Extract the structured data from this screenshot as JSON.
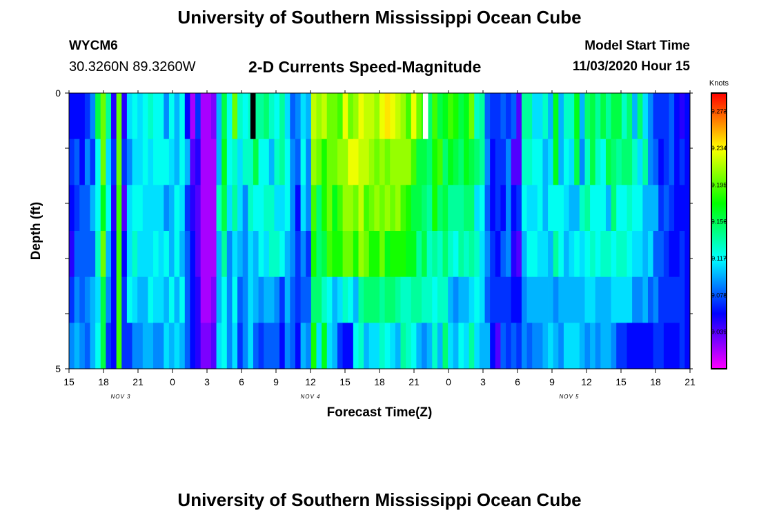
{
  "header": {
    "title": "University of Southern Mississippi Ocean Cube",
    "station_id": "WYCM6",
    "coordinates": "30.3260N 89.3260W",
    "subtitle": "2-D Currents Speed-Magnitude",
    "model_start_label": "Model Start Time",
    "model_start_value": "11/03/2020 Hour 15"
  },
  "footer": {
    "title": "University of Southern Mississippi Ocean Cube"
  },
  "chart_data": {
    "type": "heatmap",
    "xlabel": "Forecast Time(Z)",
    "ylabel": "Depth (ft)",
    "x_tick_labels": [
      "15",
      "18",
      "21",
      "0",
      "3",
      "6",
      "9",
      "12",
      "15",
      "18",
      "21",
      "0",
      "3",
      "6",
      "9",
      "12",
      "15",
      "18",
      "21"
    ],
    "x_range_hours": [
      0,
      54
    ],
    "date_labels": [
      {
        "text": "NOV 3",
        "hour": 4.5
      },
      {
        "text": "NOV 4",
        "hour": 21
      },
      {
        "text": "NOV 5",
        "hour": 43.5
      }
    ],
    "y_tick_labels": [
      "0",
      "5"
    ],
    "y_range": [
      0,
      5
    ],
    "colorbar": {
      "label": "Knots",
      "min": 0,
      "max": 0.2925,
      "tick_labels": [
        "0.273",
        "0.234",
        "0.195",
        "0.156",
        "0.117",
        "0.078",
        "0.039"
      ],
      "tick_values": [
        0.273,
        0.234,
        0.195,
        0.156,
        0.117,
        0.078,
        0.039
      ]
    },
    "missing_cells": [
      {
        "hour": 16,
        "depth_row": 0,
        "color": "#000000"
      },
      {
        "hour": 31,
        "depth_row": 0,
        "color": "#ffffff"
      }
    ],
    "depth_levels": 6,
    "depth_rows": [
      [
        0.06,
        0.06,
        0.06,
        0.07,
        0.09,
        0.16,
        0.2,
        0.14,
        0.05,
        0.2,
        0.05,
        0.11,
        0.12,
        0.11,
        0.12,
        0.13,
        0.12,
        0.12,
        0.09,
        0.12,
        0.1,
        0.12,
        0.06,
        0.02,
        0.07,
        0.02,
        0.02,
        0.03,
        0.1,
        0.16,
        0.12,
        0.2,
        0.13,
        0.12,
        0.13,
        0.14,
        0.14,
        0.15,
        0.13,
        0.12,
        0.14,
        0.11,
        0.08,
        0.09,
        0.11,
        0.1,
        0.22,
        0.21,
        0.22,
        0.2,
        0.2,
        0.19,
        0.23,
        0.2,
        0.21,
        0.23,
        0.22,
        0.22,
        0.21,
        0.23,
        0.24,
        0.23,
        0.22,
        0.21,
        0.19,
        0.23,
        0.2,
        0.18,
        0.15,
        0.19,
        0.16,
        0.17,
        0.19,
        0.18,
        0.16,
        0.17,
        0.2,
        0.13,
        0.14,
        0.08,
        0.07,
        0.07,
        0.08,
        0.07,
        0.08,
        0.04,
        0.14,
        0.14,
        0.11,
        0.11,
        0.13,
        0.1,
        0.17,
        0.1,
        0.13,
        0.13,
        0.17,
        0.1,
        0.15,
        0.16,
        0.14,
        0.16,
        0.14,
        0.16,
        0.16,
        0.13,
        0.15,
        0.1,
        0.15,
        0.11,
        0.09,
        0.07,
        0.07,
        0.07,
        0.08,
        0.06,
        0.05,
        0.06
      ],
      [
        0.07,
        0.08,
        0.06,
        0.09,
        0.07,
        0.12,
        0.2,
        0.11,
        0.07,
        0.2,
        0.07,
        0.09,
        0.11,
        0.11,
        0.12,
        0.11,
        0.12,
        0.12,
        0.12,
        0.11,
        0.1,
        0.12,
        0.1,
        0.04,
        0.05,
        0.02,
        0.02,
        0.02,
        0.1,
        0.17,
        0.12,
        0.13,
        0.11,
        0.13,
        0.13,
        0.16,
        0.12,
        0.12,
        0.1,
        0.13,
        0.14,
        0.12,
        0.09,
        0.08,
        0.12,
        0.09,
        0.21,
        0.2,
        0.18,
        0.2,
        0.2,
        0.21,
        0.21,
        0.23,
        0.23,
        0.22,
        0.22,
        0.21,
        0.2,
        0.21,
        0.2,
        0.21,
        0.21,
        0.21,
        0.21,
        0.19,
        0.16,
        0.16,
        0.15,
        0.18,
        0.19,
        0.15,
        0.17,
        0.16,
        0.15,
        0.17,
        0.16,
        0.15,
        0.14,
        0.09,
        0.06,
        0.07,
        0.07,
        0.09,
        0.04,
        0.04,
        0.13,
        0.13,
        0.12,
        0.12,
        0.1,
        0.11,
        0.17,
        0.1,
        0.12,
        0.11,
        0.16,
        0.09,
        0.13,
        0.16,
        0.13,
        0.12,
        0.16,
        0.15,
        0.14,
        0.15,
        0.15,
        0.13,
        0.11,
        0.14,
        0.09,
        0.08,
        0.06,
        0.07,
        0.08,
        0.06,
        0.07,
        0.06
      ],
      [
        0.06,
        0.07,
        0.08,
        0.08,
        0.1,
        0.12,
        0.17,
        0.12,
        0.05,
        0.19,
        0.04,
        0.11,
        0.12,
        0.12,
        0.11,
        0.11,
        0.11,
        0.11,
        0.09,
        0.1,
        0.12,
        0.11,
        0.07,
        0.05,
        0.04,
        0.02,
        0.02,
        0.02,
        0.13,
        0.16,
        0.11,
        0.14,
        0.11,
        0.09,
        0.13,
        0.12,
        0.12,
        0.13,
        0.13,
        0.11,
        0.11,
        0.12,
        0.09,
        0.06,
        0.11,
        0.09,
        0.19,
        0.15,
        0.18,
        0.2,
        0.17,
        0.19,
        0.21,
        0.21,
        0.2,
        0.22,
        0.19,
        0.2,
        0.21,
        0.2,
        0.21,
        0.2,
        0.21,
        0.19,
        0.18,
        0.16,
        0.16,
        0.15,
        0.14,
        0.18,
        0.15,
        0.16,
        0.14,
        0.14,
        0.14,
        0.15,
        0.15,
        0.11,
        0.12,
        0.08,
        0.06,
        0.07,
        0.06,
        0.09,
        0.06,
        0.07,
        0.12,
        0.11,
        0.11,
        0.12,
        0.1,
        0.12,
        0.12,
        0.12,
        0.11,
        0.1,
        0.1,
        0.13,
        0.14,
        0.12,
        0.12,
        0.12,
        0.1,
        0.15,
        0.12,
        0.12,
        0.13,
        0.12,
        0.12,
        0.1,
        0.1,
        0.1,
        0.07,
        0.08,
        0.07,
        0.06,
        0.06,
        0.06
      ],
      [
        0.05,
        0.08,
        0.08,
        0.08,
        0.08,
        0.13,
        0.2,
        0.1,
        0.06,
        0.19,
        0.06,
        0.11,
        0.13,
        0.11,
        0.11,
        0.11,
        0.12,
        0.11,
        0.12,
        0.1,
        0.12,
        0.1,
        0.08,
        0.06,
        0.04,
        0.02,
        0.02,
        0.02,
        0.1,
        0.14,
        0.09,
        0.11,
        0.1,
        0.09,
        0.11,
        0.1,
        0.12,
        0.11,
        0.13,
        0.13,
        0.12,
        0.1,
        0.09,
        0.07,
        0.09,
        0.07,
        0.18,
        0.15,
        0.16,
        0.19,
        0.18,
        0.18,
        0.2,
        0.2,
        0.18,
        0.21,
        0.2,
        0.18,
        0.18,
        0.2,
        0.17,
        0.18,
        0.18,
        0.18,
        0.17,
        0.17,
        0.14,
        0.16,
        0.13,
        0.14,
        0.13,
        0.15,
        0.13,
        0.12,
        0.14,
        0.13,
        0.14,
        0.13,
        0.11,
        0.09,
        0.07,
        0.06,
        0.08,
        0.09,
        0.05,
        0.04,
        0.1,
        0.12,
        0.12,
        0.11,
        0.11,
        0.1,
        0.14,
        0.12,
        0.1,
        0.11,
        0.12,
        0.11,
        0.12,
        0.13,
        0.12,
        0.13,
        0.13,
        0.12,
        0.13,
        0.13,
        0.12,
        0.11,
        0.11,
        0.1,
        0.11,
        0.08,
        0.08,
        0.07,
        0.06,
        0.06,
        0.07,
        0.06
      ],
      [
        0.07,
        0.09,
        0.08,
        0.09,
        0.1,
        0.11,
        0.16,
        0.09,
        0.06,
        0.19,
        0.07,
        0.12,
        0.11,
        0.1,
        0.1,
        0.12,
        0.11,
        0.11,
        0.1,
        0.12,
        0.1,
        0.12,
        0.08,
        0.06,
        0.05,
        0.02,
        0.02,
        0.03,
        0.1,
        0.12,
        0.09,
        0.12,
        0.08,
        0.09,
        0.11,
        0.1,
        0.09,
        0.1,
        0.1,
        0.09,
        0.07,
        0.1,
        0.08,
        0.07,
        0.08,
        0.08,
        0.15,
        0.15,
        0.13,
        0.12,
        0.1,
        0.11,
        0.13,
        0.12,
        0.1,
        0.14,
        0.15,
        0.15,
        0.15,
        0.14,
        0.15,
        0.15,
        0.14,
        0.13,
        0.13,
        0.14,
        0.14,
        0.13,
        0.13,
        0.12,
        0.13,
        0.13,
        0.1,
        0.09,
        0.1,
        0.1,
        0.11,
        0.12,
        0.11,
        0.08,
        0.07,
        0.07,
        0.07,
        0.07,
        0.06,
        0.06,
        0.09,
        0.1,
        0.1,
        0.1,
        0.1,
        0.1,
        0.09,
        0.1,
        0.1,
        0.1,
        0.1,
        0.1,
        0.11,
        0.11,
        0.1,
        0.1,
        0.1,
        0.11,
        0.11,
        0.11,
        0.11,
        0.09,
        0.09,
        0.1,
        0.08,
        0.09,
        0.07,
        0.07,
        0.07,
        0.07,
        0.07,
        0.06
      ],
      [
        0.09,
        0.1,
        0.09,
        0.08,
        0.1,
        0.12,
        0.16,
        0.07,
        0.06,
        0.19,
        0.07,
        0.07,
        0.09,
        0.09,
        0.1,
        0.1,
        0.09,
        0.09,
        0.11,
        0.1,
        0.11,
        0.1,
        0.08,
        0.06,
        0.05,
        0.03,
        0.03,
        0.04,
        0.11,
        0.12,
        0.09,
        0.11,
        0.07,
        0.09,
        0.11,
        0.08,
        0.07,
        0.08,
        0.08,
        0.08,
        0.06,
        0.09,
        0.08,
        0.06,
        0.1,
        0.09,
        0.18,
        0.11,
        0.17,
        0.11,
        0.1,
        0.07,
        0.06,
        0.06,
        0.12,
        0.13,
        0.1,
        0.11,
        0.11,
        0.13,
        0.12,
        0.11,
        0.1,
        0.14,
        0.13,
        0.12,
        0.1,
        0.09,
        0.1,
        0.13,
        0.1,
        0.15,
        0.11,
        0.1,
        0.12,
        0.11,
        0.14,
        0.11,
        0.1,
        0.1,
        0.06,
        0.04,
        0.08,
        0.07,
        0.08,
        0.07,
        0.09,
        0.08,
        0.09,
        0.09,
        0.1,
        0.11,
        0.1,
        0.09,
        0.11,
        0.11,
        0.11,
        0.1,
        0.09,
        0.1,
        0.09,
        0.1,
        0.1,
        0.09,
        0.07,
        0.07,
        0.06,
        0.06,
        0.06,
        0.06,
        0.06,
        0.07,
        0.07,
        0.06,
        0.06,
        0.06,
        0.07,
        0.06
      ]
    ]
  }
}
